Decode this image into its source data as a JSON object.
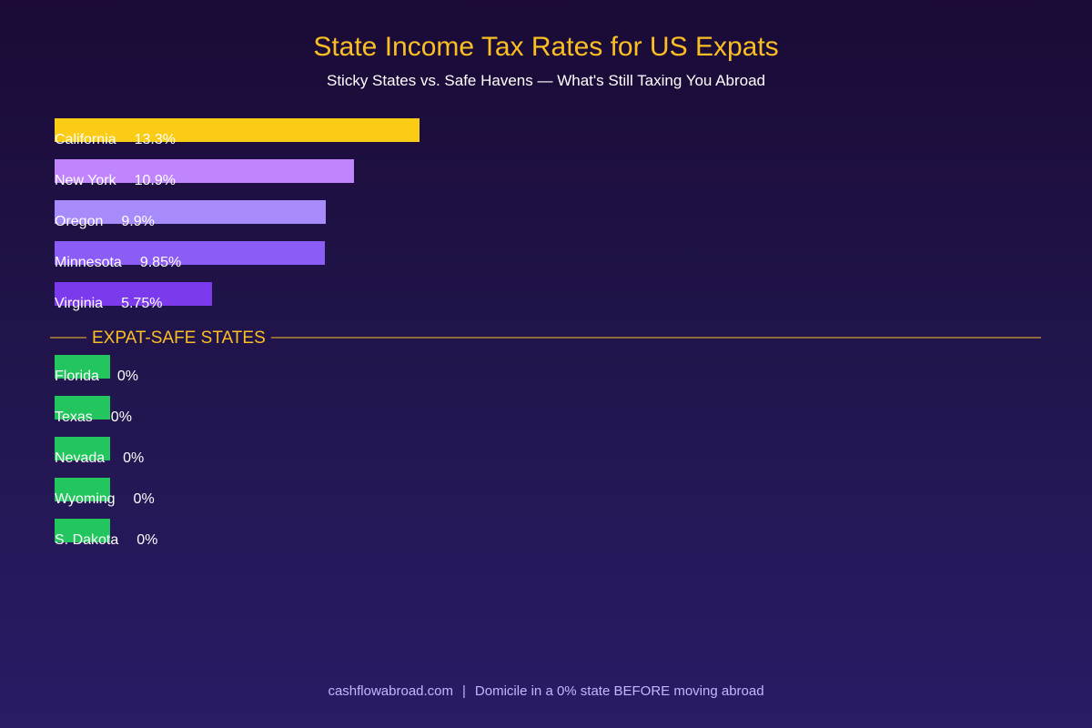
{
  "header": {
    "title": "State Income Tax Rates for US Expats",
    "subtitle": "Sticky States vs. Safe Havens — What's Still Taxing You Abroad"
  },
  "footer": {
    "site": "cashflowabroad.com",
    "separator": "|",
    "tip": "Domicile in a 0% state BEFORE moving abroad"
  },
  "colors": {
    "title": "#fbbf24",
    "divider": "#fbbf24",
    "zero_bar": "#22c55e",
    "label": "#ffffff"
  },
  "chart_data": {
    "type": "bar",
    "orientation": "horizontal",
    "title": "State Income Tax Rates for US Expats",
    "subtitle": "Sticky States vs. Safe Havens — What's Still Taxing You Abroad",
    "groups": [
      {
        "name": "",
        "categories": [
          "California",
          "New York",
          "Oregon",
          "Minnesota",
          "Virginia"
        ],
        "values": [
          13.3,
          10.9,
          9.9,
          9.85,
          5.75
        ],
        "labels": [
          "13.3%",
          "10.9%",
          "9.9%",
          "9.85%",
          "5.75%"
        ],
        "colors": [
          "#facc15",
          "#c084fc",
          "#a78bfa",
          "#8b5cf6",
          "#7c3aed"
        ]
      },
      {
        "name": "EXPAT-SAFE STATES",
        "categories": [
          "Florida",
          "Texas",
          "Nevada",
          "Wyoming",
          "S. Dakota"
        ],
        "values": [
          0,
          0,
          0,
          0,
          0
        ],
        "labels": [
          "0%",
          "0%",
          "0%",
          "0%",
          "0%"
        ],
        "colors": [
          "#22c55e",
          "#22c55e",
          "#22c55e",
          "#22c55e",
          "#22c55e"
        ]
      }
    ],
    "grid": false,
    "legend": "none"
  }
}
